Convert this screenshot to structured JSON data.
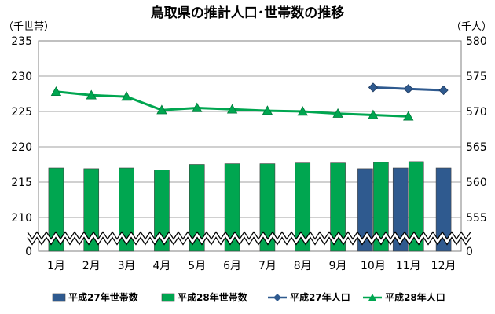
{
  "chart_data": {
    "type": "bar",
    "title": "鳥取県の推計人口･世帯数の推移",
    "y_left_unit": "（千世帯）",
    "y_right_unit": "（千人）",
    "categories": [
      "1月",
      "2月",
      "3月",
      "4月",
      "5月",
      "6月",
      "7月",
      "8月",
      "9月",
      "10月",
      "11月",
      "12月"
    ],
    "y_left": {
      "ticks": [
        "235",
        "230",
        "225",
        "220",
        "215",
        "210",
        "0"
      ],
      "tick_values": [
        235,
        230,
        225,
        220,
        215,
        210
      ],
      "range": [
        208,
        235
      ],
      "axis_break": true
    },
    "y_right": {
      "ticks": [
        "580",
        "575",
        "570",
        "565",
        "560",
        "555",
        "0"
      ],
      "tick_values": [
        580,
        575,
        570,
        565,
        560,
        555
      ],
      "range": [
        553,
        580
      ],
      "axis_break": true
    },
    "series": [
      {
        "name": "平成27年世帯数",
        "kind": "bar",
        "axis": "left",
        "color": "#2f5a8f",
        "values": [
          null,
          null,
          null,
          null,
          null,
          null,
          null,
          null,
          null,
          216.9,
          217.0,
          217.0
        ]
      },
      {
        "name": "平成28年世帯数",
        "kind": "bar",
        "axis": "left",
        "color": "#00a650",
        "values": [
          217.0,
          216.9,
          217.0,
          216.7,
          217.5,
          217.6,
          217.6,
          217.7,
          217.7,
          217.8,
          217.9,
          null
        ]
      },
      {
        "name": "平成27年人口",
        "kind": "line",
        "axis": "right",
        "color": "#2f5a8f",
        "marker": "diamond",
        "values": [
          null,
          null,
          null,
          null,
          null,
          null,
          null,
          null,
          null,
          573.4,
          573.2,
          573.0
        ]
      },
      {
        "name": "平成28年人口",
        "kind": "line",
        "axis": "right",
        "color": "#00a650",
        "marker": "triangle",
        "values": [
          572.8,
          572.3,
          572.1,
          570.2,
          570.5,
          570.3,
          570.1,
          570.0,
          569.7,
          569.5,
          569.3,
          null
        ]
      }
    ],
    "grid": true,
    "legend_position": "bottom"
  }
}
